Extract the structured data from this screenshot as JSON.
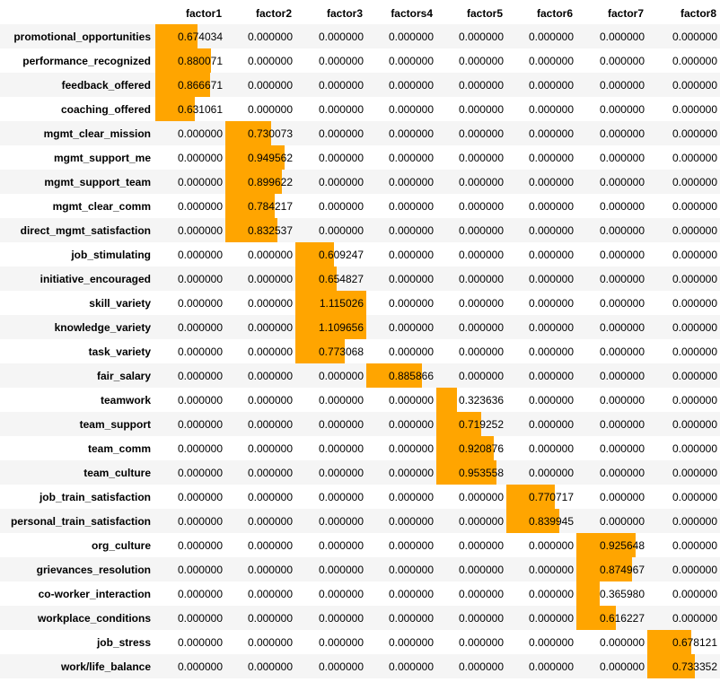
{
  "chart_data": {
    "type": "table",
    "columns": [
      "factor1",
      "factor2",
      "factor3",
      "factors4",
      "factor5",
      "factor6",
      "factor7",
      "factor8"
    ],
    "rows": [
      {
        "label": "promotional_opportunities",
        "values": [
          "0.674034",
          "0.000000",
          "0.000000",
          "0.000000",
          "0.000000",
          "0.000000",
          "0.000000",
          "0.000000"
        ]
      },
      {
        "label": "performance_recognized",
        "values": [
          "0.880071",
          "0.000000",
          "0.000000",
          "0.000000",
          "0.000000",
          "0.000000",
          "0.000000",
          "0.000000"
        ]
      },
      {
        "label": "feedback_offered",
        "values": [
          "0.866671",
          "0.000000",
          "0.000000",
          "0.000000",
          "0.000000",
          "0.000000",
          "0.000000",
          "0.000000"
        ]
      },
      {
        "label": "coaching_offered",
        "values": [
          "0.631061",
          "0.000000",
          "0.000000",
          "0.000000",
          "0.000000",
          "0.000000",
          "0.000000",
          "0.000000"
        ]
      },
      {
        "label": "mgmt_clear_mission",
        "values": [
          "0.000000",
          "0.730073",
          "0.000000",
          "0.000000",
          "0.000000",
          "0.000000",
          "0.000000",
          "0.000000"
        ]
      },
      {
        "label": "mgmt_support_me",
        "values": [
          "0.000000",
          "0.949562",
          "0.000000",
          "0.000000",
          "0.000000",
          "0.000000",
          "0.000000",
          "0.000000"
        ]
      },
      {
        "label": "mgmt_support_team",
        "values": [
          "0.000000",
          "0.899622",
          "0.000000",
          "0.000000",
          "0.000000",
          "0.000000",
          "0.000000",
          "0.000000"
        ]
      },
      {
        "label": "mgmt_clear_comm",
        "values": [
          "0.000000",
          "0.784217",
          "0.000000",
          "0.000000",
          "0.000000",
          "0.000000",
          "0.000000",
          "0.000000"
        ]
      },
      {
        "label": "direct_mgmt_satisfaction",
        "values": [
          "0.000000",
          "0.832537",
          "0.000000",
          "0.000000",
          "0.000000",
          "0.000000",
          "0.000000",
          "0.000000"
        ]
      },
      {
        "label": "job_stimulating",
        "values": [
          "0.000000",
          "0.000000",
          "0.609247",
          "0.000000",
          "0.000000",
          "0.000000",
          "0.000000",
          "0.000000"
        ]
      },
      {
        "label": "initiative_encouraged",
        "values": [
          "0.000000",
          "0.000000",
          "0.654827",
          "0.000000",
          "0.000000",
          "0.000000",
          "0.000000",
          "0.000000"
        ]
      },
      {
        "label": "skill_variety",
        "values": [
          "0.000000",
          "0.000000",
          "1.115026",
          "0.000000",
          "0.000000",
          "0.000000",
          "0.000000",
          "0.000000"
        ]
      },
      {
        "label": "knowledge_variety",
        "values": [
          "0.000000",
          "0.000000",
          "1.109656",
          "0.000000",
          "0.000000",
          "0.000000",
          "0.000000",
          "0.000000"
        ]
      },
      {
        "label": "task_variety",
        "values": [
          "0.000000",
          "0.000000",
          "0.773068",
          "0.000000",
          "0.000000",
          "0.000000",
          "0.000000",
          "0.000000"
        ]
      },
      {
        "label": "fair_salary",
        "values": [
          "0.000000",
          "0.000000",
          "0.000000",
          "0.885866",
          "0.000000",
          "0.000000",
          "0.000000",
          "0.000000"
        ]
      },
      {
        "label": "teamwork",
        "values": [
          "0.000000",
          "0.000000",
          "0.000000",
          "0.000000",
          "0.323636",
          "0.000000",
          "0.000000",
          "0.000000"
        ]
      },
      {
        "label": "team_support",
        "values": [
          "0.000000",
          "0.000000",
          "0.000000",
          "0.000000",
          "0.719252",
          "0.000000",
          "0.000000",
          "0.000000"
        ]
      },
      {
        "label": "team_comm",
        "values": [
          "0.000000",
          "0.000000",
          "0.000000",
          "0.000000",
          "0.920876",
          "0.000000",
          "0.000000",
          "0.000000"
        ]
      },
      {
        "label": "team_culture",
        "values": [
          "0.000000",
          "0.000000",
          "0.000000",
          "0.000000",
          "0.953558",
          "0.000000",
          "0.000000",
          "0.000000"
        ]
      },
      {
        "label": "job_train_satisfaction",
        "values": [
          "0.000000",
          "0.000000",
          "0.000000",
          "0.000000",
          "0.000000",
          "0.770717",
          "0.000000",
          "0.000000"
        ]
      },
      {
        "label": "personal_train_satisfaction",
        "values": [
          "0.000000",
          "0.000000",
          "0.000000",
          "0.000000",
          "0.000000",
          "0.839945",
          "0.000000",
          "0.000000"
        ]
      },
      {
        "label": "org_culture",
        "values": [
          "0.000000",
          "0.000000",
          "0.000000",
          "0.000000",
          "0.000000",
          "0.000000",
          "0.925648",
          "0.000000"
        ]
      },
      {
        "label": "grievances_resolution",
        "values": [
          "0.000000",
          "0.000000",
          "0.000000",
          "0.000000",
          "0.000000",
          "0.000000",
          "0.874967",
          "0.000000"
        ]
      },
      {
        "label": "co-worker_interaction",
        "values": [
          "0.000000",
          "0.000000",
          "0.000000",
          "0.000000",
          "0.000000",
          "0.000000",
          "0.365980",
          "0.000000"
        ]
      },
      {
        "label": "workplace_conditions",
        "values": [
          "0.000000",
          "0.000000",
          "0.000000",
          "0.000000",
          "0.000000",
          "0.000000",
          "0.616227",
          "0.000000"
        ]
      },
      {
        "label": "job_stress",
        "values": [
          "0.000000",
          "0.000000",
          "0.000000",
          "0.000000",
          "0.000000",
          "0.000000",
          "0.000000",
          "0.678121"
        ]
      },
      {
        "label": "work/life_balance",
        "values": [
          "0.000000",
          "0.000000",
          "0.000000",
          "0.000000",
          "0.000000",
          "0.000000",
          "0.000000",
          "0.733352"
        ]
      }
    ],
    "bar_color": "#ffa500",
    "bar_scale_max": 1.115026
  }
}
